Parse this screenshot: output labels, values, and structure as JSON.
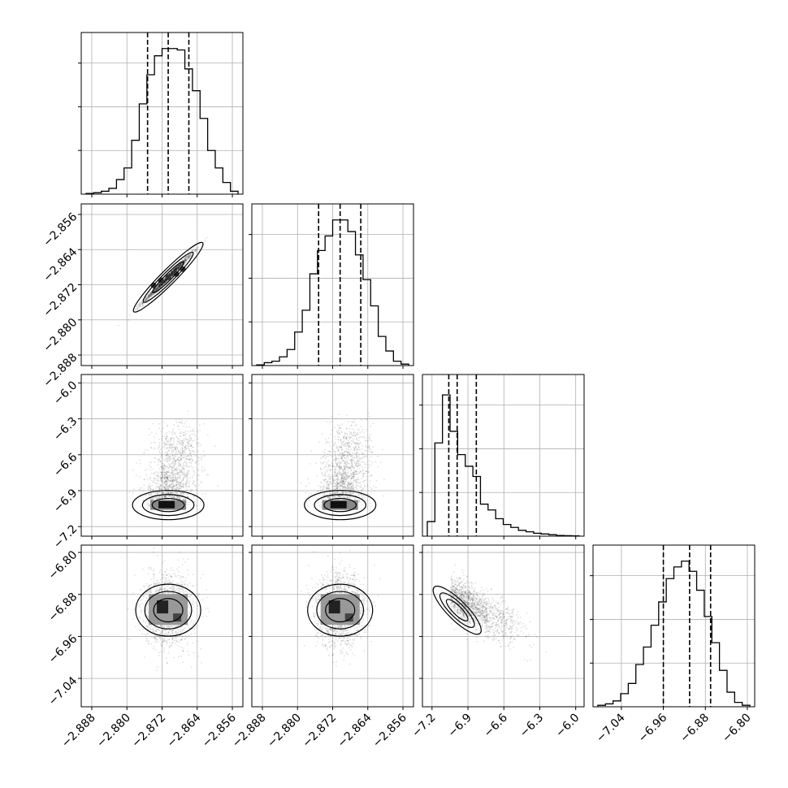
{
  "chart_data": {
    "type": "corner",
    "title": "",
    "params": [
      {
        "xlim": [
          -2.8904,
          -2.8536
        ],
        "ticks": [
          -2.888,
          -2.88,
          -2.872,
          -2.864,
          -2.856
        ],
        "tick_labels": [
          "−2.888",
          "−2.880",
          "−2.872",
          "−2.864",
          "−2.856"
        ],
        "quantiles": [
          -2.8753,
          -2.8706,
          -2.8659
        ]
      },
      {
        "xlim": [
          -2.8904,
          -2.8536
        ],
        "ticks": [
          -2.888,
          -2.88,
          -2.872,
          -2.864,
          -2.856
        ],
        "tick_labels": [
          "−2.888",
          "−2.880",
          "−2.872",
          "−2.864",
          "−2.856"
        ],
        "quantiles": [
          -2.8752,
          -2.8703,
          -2.8656
        ]
      },
      {
        "xlim": [
          -7.28,
          -5.93
        ],
        "ticks": [
          -7.2,
          -6.9,
          -6.6,
          -6.3,
          -6.0
        ],
        "tick_labels": [
          "−7.2",
          "−6.9",
          "−6.6",
          "−6.3",
          "−6.0"
        ],
        "quantiles": [
          -7.06,
          -6.99,
          -6.83
        ]
      },
      {
        "xlim": [
          -7.094,
          -6.786
        ],
        "ticks": [
          -7.04,
          -6.96,
          -6.88,
          -6.8
        ],
        "tick_labels": [
          "−7.04",
          "−6.96",
          "−6.88",
          "−6.80"
        ],
        "quantiles": [
          -6.96,
          -6.91,
          -6.87
        ]
      }
    ],
    "histograms": [
      [
        0.005,
        0.01,
        0.02,
        0.04,
        0.1,
        0.18,
        0.37,
        0.62,
        0.82,
        0.95,
        1.0,
        1.0,
        0.99,
        0.86,
        0.71,
        0.52,
        0.3,
        0.18,
        0.08,
        0.02
      ],
      [
        0.005,
        0.02,
        0.03,
        0.06,
        0.11,
        0.23,
        0.38,
        0.63,
        0.79,
        0.89,
        1.0,
        1.0,
        0.92,
        0.76,
        0.59,
        0.41,
        0.2,
        0.1,
        0.03,
        0.01
      ],
      [
        0.1,
        0.64,
        0.97,
        0.72,
        0.56,
        0.48,
        0.41,
        0.22,
        0.18,
        0.12,
        0.08,
        0.06,
        0.04,
        0.03,
        0.02,
        0.015,
        0.01,
        0.005,
        0.003,
        0.002
      ],
      [
        0.01,
        0.02,
        0.04,
        0.09,
        0.16,
        0.29,
        0.41,
        0.56,
        0.72,
        0.88,
        0.96,
        1.0,
        0.93,
        0.8,
        0.62,
        0.44,
        0.25,
        0.1,
        0.03,
        0.01
      ]
    ],
    "grid": true,
    "legend": ""
  }
}
